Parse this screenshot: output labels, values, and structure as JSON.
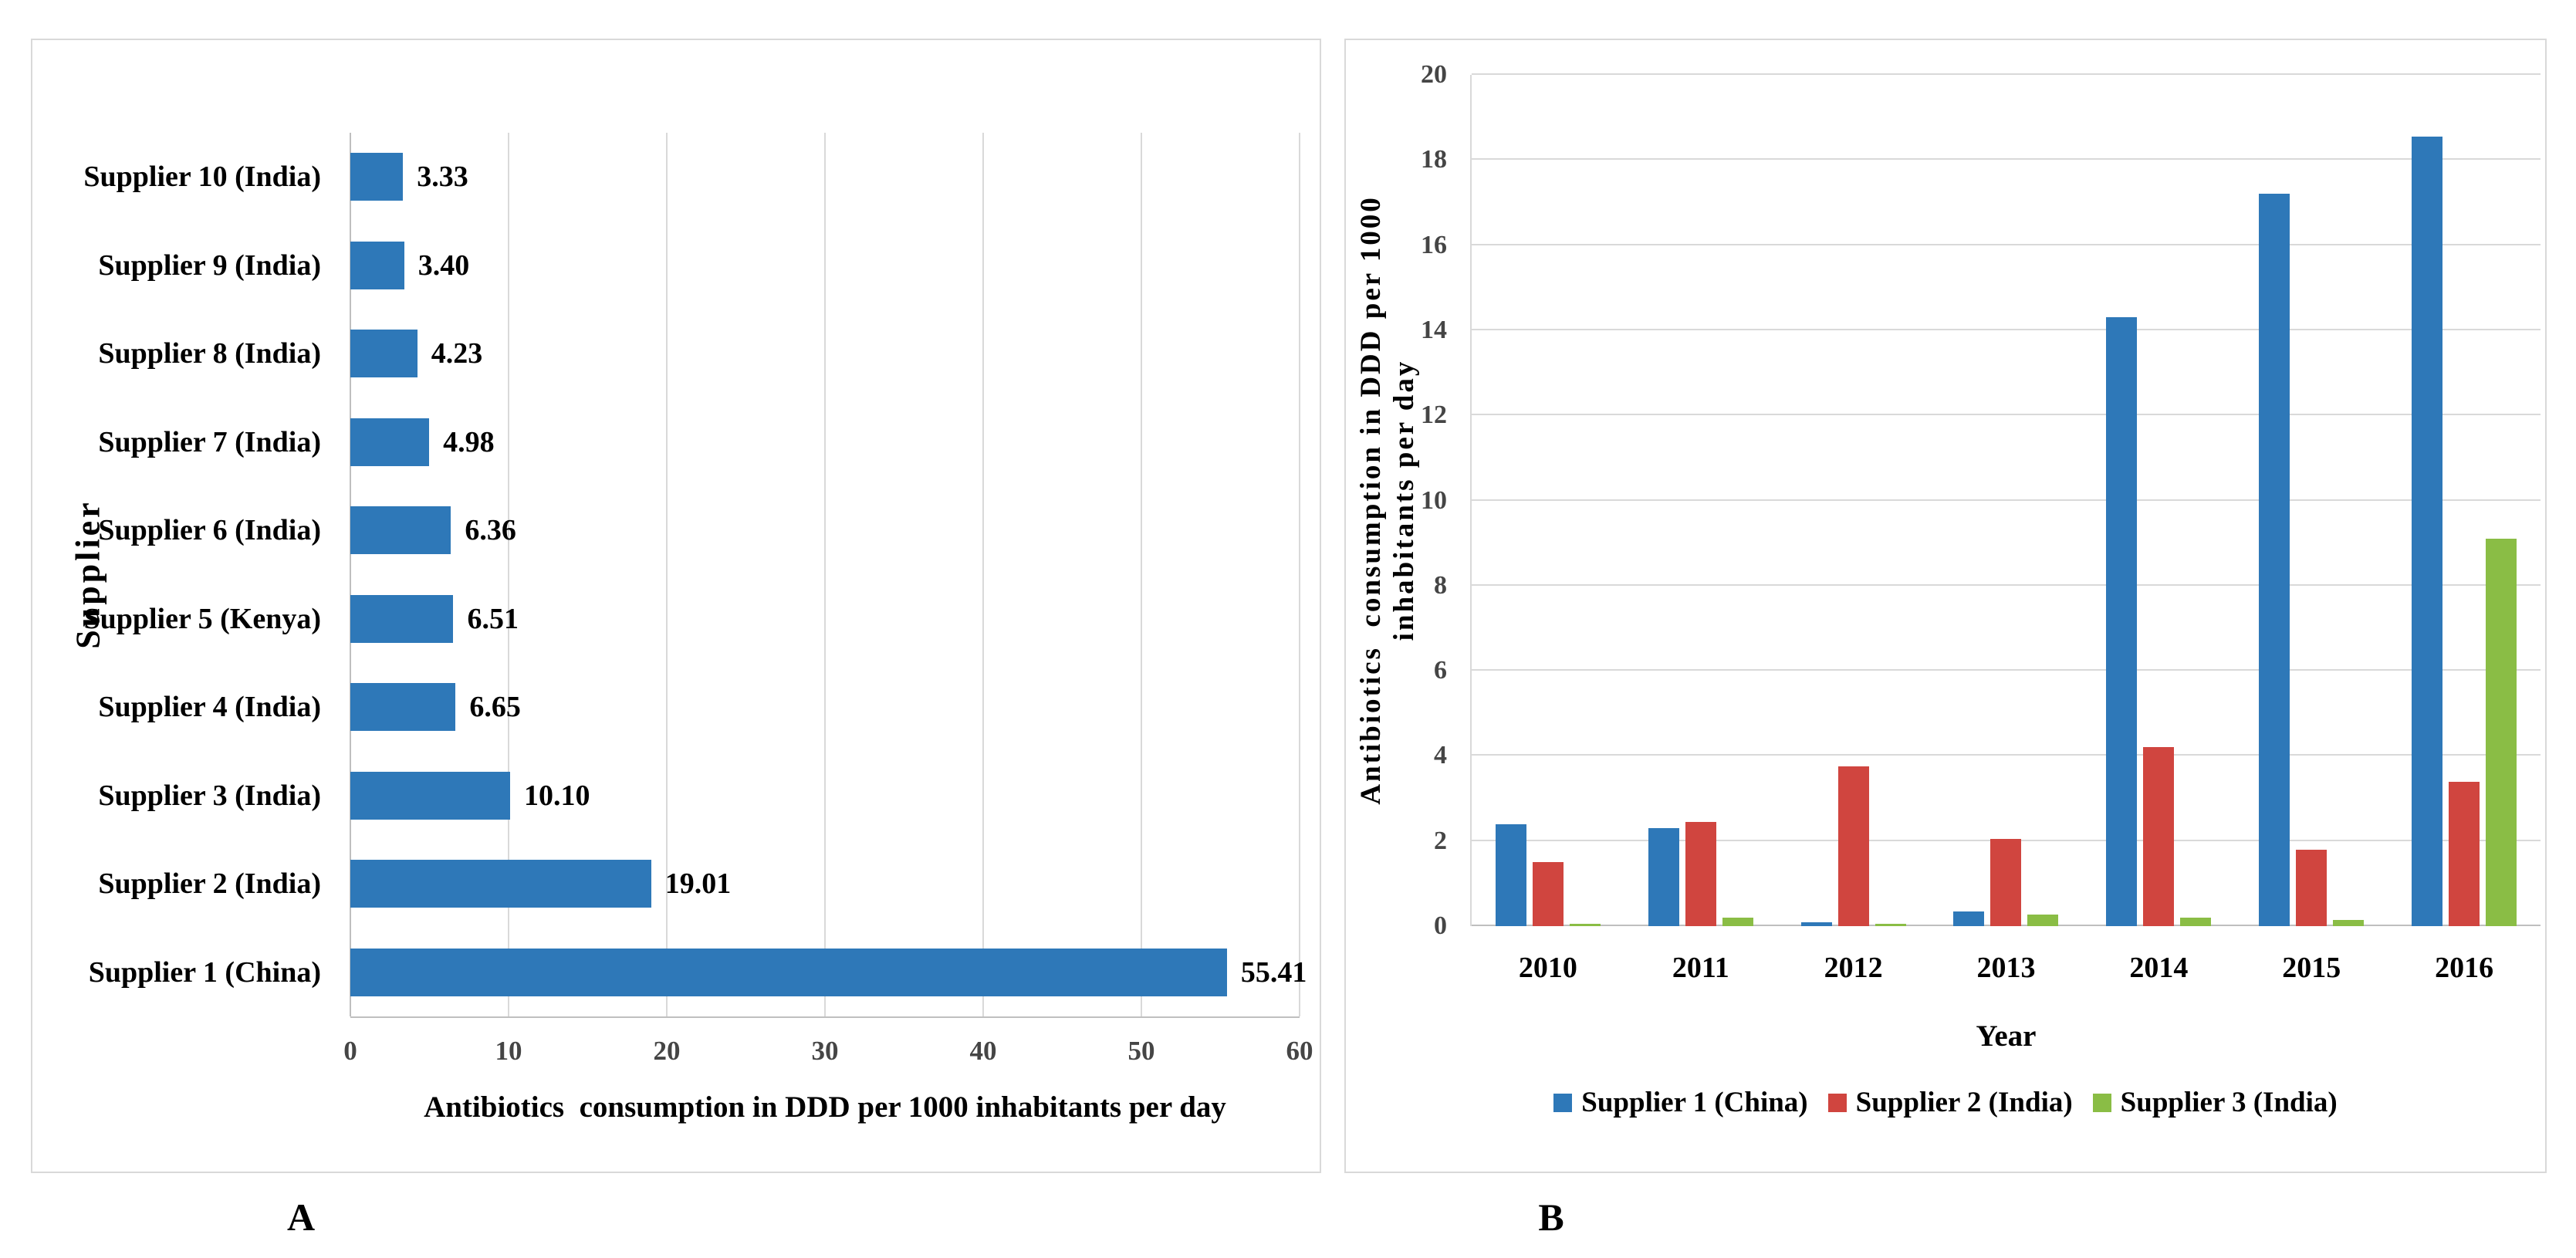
{
  "figure": {
    "panel_a_label": "A",
    "panel_b_label": "B",
    "background": "#FFFFFF"
  },
  "colors": {
    "supplier1_blue": "#2E78B8",
    "supplier2_red": "#D0453F",
    "supplier3_green": "#8ABD45",
    "gridline": "#D9D9D9",
    "axis_line": "#BFBFBF",
    "panel_border": "#D9D9D9",
    "tick_text": "#454545",
    "text": "#000000"
  },
  "chart_data": [
    {
      "id": "A",
      "type": "bar",
      "orientation": "horizontal",
      "title": "",
      "xlabel": "Antibiotics  consumption in DDD per 1000 inhabitants per day",
      "ylabel": "Supplier",
      "xlim": [
        0,
        60
      ],
      "xticks": [
        0,
        10,
        20,
        30,
        40,
        50,
        60
      ],
      "grid": "vertical",
      "legend": "none",
      "bar_color": "#2E78B8",
      "categories": [
        "Supplier 10 (India)",
        "Supplier 9 (India)",
        "Supplier 8 (India)",
        "Supplier 7 (India)",
        "Supplier 6 (India)",
        "Supplier 5 (Kenya)",
        "Supplier 4 (India)",
        "Supplier 3 (India)",
        "Supplier 2 (India)",
        "Supplier 1 (China)"
      ],
      "values": [
        3.33,
        3.4,
        4.23,
        4.98,
        6.36,
        6.51,
        6.65,
        10.1,
        19.01,
        55.41
      ],
      "value_labels": [
        "3.33",
        "3.40",
        "4.23",
        "4.98",
        "6.36",
        "6.51",
        "6.65",
        "10.10",
        "19.01",
        "55.41"
      ]
    },
    {
      "id": "B",
      "type": "bar",
      "orientation": "vertical",
      "title": "",
      "xlabel": "Year",
      "ylabel_line1": "Antibiotics  consumption in DDD per 1000",
      "ylabel_line2": "inhabitants per day",
      "ylim": [
        0,
        20
      ],
      "yticks": [
        0,
        2,
        4,
        6,
        8,
        10,
        12,
        14,
        16,
        18,
        20
      ],
      "grid": "horizontal",
      "legend_position": "bottom",
      "categories": [
        "2010",
        "2011",
        "2012",
        "2013",
        "2014",
        "2015",
        "2016"
      ],
      "series": [
        {
          "name": "Supplier 1 (China)",
          "color": "#2E78B8",
          "values": [
            2.4,
            2.3,
            0.1,
            0.35,
            14.3,
            17.2,
            18.55
          ]
        },
        {
          "name": "Supplier 2 (India)",
          "color": "#D0453F",
          "values": [
            1.5,
            2.45,
            3.75,
            2.05,
            4.2,
            1.8,
            3.4
          ]
        },
        {
          "name": "Supplier 3 (India)",
          "color": "#8ABD45",
          "values": [
            0.05,
            0.2,
            0.05,
            0.27,
            0.2,
            0.15,
            9.1
          ]
        }
      ]
    }
  ]
}
